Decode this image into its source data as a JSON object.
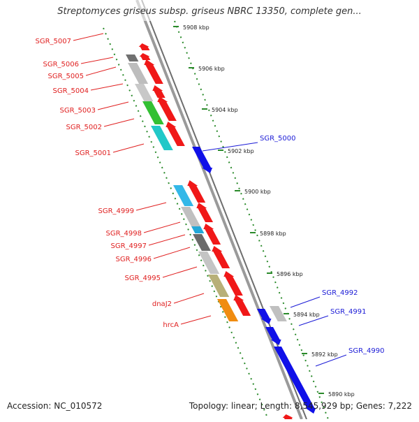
{
  "title": "Streptomyces griseus subsp. griseus NBRC 13350, complete gen...",
  "footer": {
    "accession": "Accession: NC_010572",
    "summary": "Topology: linear; Length: 8,545,929 bp; Genes: 7,222"
  },
  "colors": {
    "backbone": "#8c8c8c",
    "ruler": "#2a8a2a",
    "forward_label": "#e02020",
    "reverse_label": "#1a1ad6"
  },
  "ruler_ticks": [
    "5908 kbp",
    "5906 kbp",
    "5904 kbp",
    "5902 kbp",
    "5900 kbp",
    "5898 kbp",
    "5896 kbp",
    "5894 kbp",
    "5892 kbp",
    "5890 kbp"
  ],
  "forward_genes": [
    "SGR_5007",
    "SGR_5006",
    "SGR_5005",
    "SGR_5004",
    "SGR_5003",
    "SGR_5002",
    "SGR_5001",
    "SGR_4999",
    "SGR_4998",
    "SGR_4997",
    "SGR_4996",
    "SGR_4995",
    "dnaJ2",
    "hrcA"
  ],
  "reverse_genes": [
    "SGR_5000",
    "SGR_4992",
    "SGR_4991",
    "SGR_4990"
  ]
}
